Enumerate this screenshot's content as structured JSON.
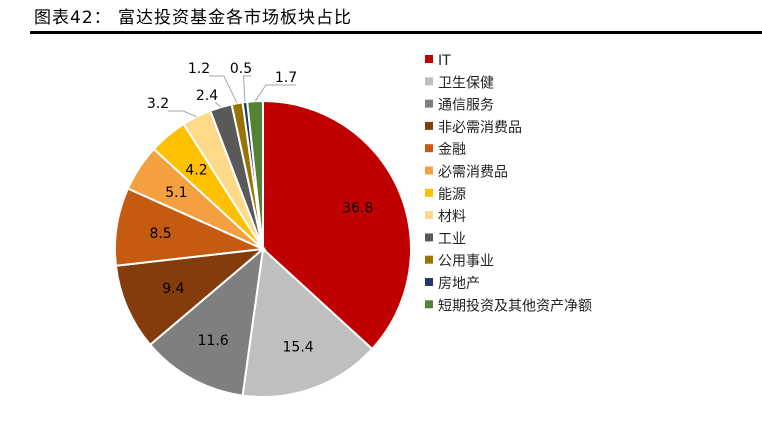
{
  "title": "图表42：  富达投资基金各市场板块占比",
  "chart_data": {
    "type": "pie",
    "title": "图表42：  富达投资基金各市场板块占比",
    "slices": [
      {
        "name": "IT",
        "value": 36.8,
        "label": "36.8",
        "color": "#c00000"
      },
      {
        "name": "卫生保健",
        "value": 15.4,
        "label": "15.4",
        "color": "#bfbfbf"
      },
      {
        "name": "通信服务",
        "value": 11.6,
        "label": "11.6",
        "color": "#7f7f7f"
      },
      {
        "name": "非必需消费品",
        "value": 9.4,
        "label": "9.4",
        "color": "#843c0c"
      },
      {
        "name": "金融",
        "value": 8.5,
        "label": "8.5",
        "color": "#c55a11"
      },
      {
        "name": "必需消费品",
        "value": 5.1,
        "label": "5.1",
        "color": "#f4a041"
      },
      {
        "name": "能源",
        "value": 4.2,
        "label": "4.2",
        "color": "#ffc000"
      },
      {
        "name": "材料",
        "value": 3.2,
        "label": "3.2",
        "color": "#ffd98a"
      },
      {
        "name": "工业",
        "value": 2.4,
        "label": "2.4",
        "color": "#595959"
      },
      {
        "name": "公用事业",
        "value": 1.2,
        "label": "1.2",
        "color": "#997300"
      },
      {
        "name": "房地产",
        "value": 0.5,
        "label": "0.5",
        "color": "#203864"
      },
      {
        "name": "短期投资及其他资产净额",
        "value": 1.7,
        "label": "1.7",
        "color": "#548235"
      }
    ],
    "legend_position": "right"
  }
}
